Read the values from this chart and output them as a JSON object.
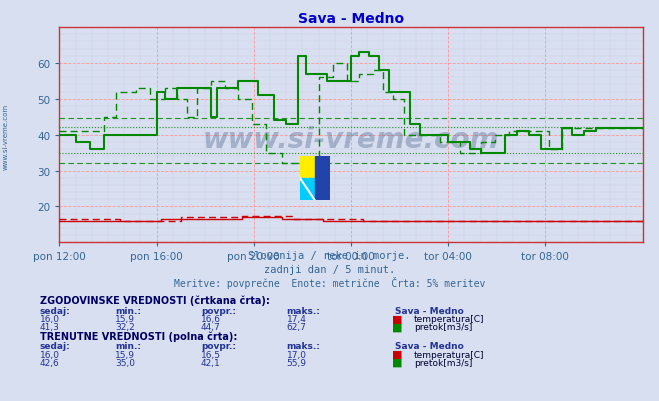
{
  "title": "Sava - Medno",
  "title_color": "#0000cc",
  "bg_color": "#d8dff0",
  "plot_bg_color": "#d8dff0",
  "xlabel_color": "#336699",
  "ylabel_color": "#336699",
  "xlim": [
    0,
    288
  ],
  "ylim": [
    10,
    70
  ],
  "yticks": [
    20,
    30,
    40,
    50,
    60
  ],
  "xtick_labels": [
    "pon 12:00",
    "pon 16:00",
    "pon 20:00",
    "tor 00:00",
    "tor 04:00",
    "tor 08:00"
  ],
  "xtick_positions": [
    0,
    48,
    96,
    144,
    192,
    240
  ],
  "subtitle1": "Slovenija / reke in morje.",
  "subtitle2": "zadnji dan / 5 minut.",
  "subtitle3": "Meritve: povprečne  Enote: metrične  Črta: 5% meritev",
  "watermark": "www.si-vreme.com",
  "temp_color": "#cc0000",
  "flow_color": "#008800",
  "flow_dashed_avg": 44.7,
  "flow_dashed_min": 32.2,
  "flow_solid_avg": 42.1,
  "flow_solid_min": 35.0,
  "sidebar_text": "www.si-vreme.com",
  "sidebar_color": "#336699",
  "hist_header": "ZGODOVINSKE VREDNOSTI (črtkana črta):",
  "curr_header": "TRENUTNE VREDNOSTI (polna črta):",
  "col_headers": [
    "sedaj:",
    "min.:",
    "povpr.:",
    "maks.:"
  ],
  "station_label": "Sava - Medno",
  "temp_label": "temperatura[C]",
  "flow_label": "pretok[m3/s]",
  "hist_temp_vals": [
    "16,0",
    "15,9",
    "16,6",
    "17,4"
  ],
  "hist_flow_vals": [
    "41,3",
    "32,2",
    "44,7",
    "62,7"
  ],
  "curr_temp_vals": [
    "16,0",
    "15,9",
    "16,5",
    "17,0"
  ],
  "curr_flow_vals": [
    "42,6",
    "35,0",
    "42,1",
    "55,9"
  ]
}
